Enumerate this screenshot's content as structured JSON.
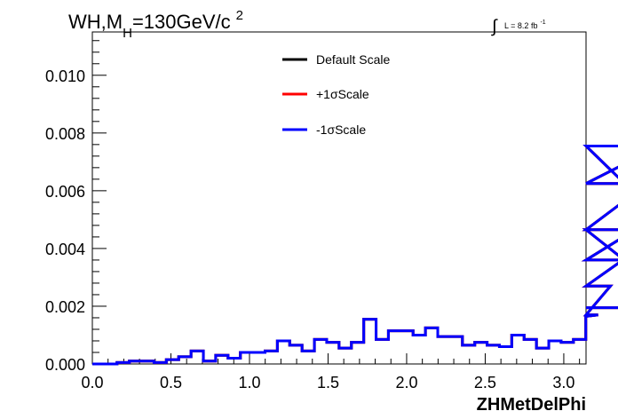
{
  "chart_data": {
    "type": "line",
    "title": {
      "prefix": "WH,M",
      "subscript": "H",
      "rest": "=130GeV/c",
      "superscript": "2"
    },
    "lumi": {
      "integral": "∫",
      "text": "L = 8.2 fb",
      "superscript": "-1"
    },
    "xlabel": "ZHMetDelPhi",
    "ylabel": "",
    "xlim": [
      0.0,
      3.1416
    ],
    "ylim": [
      0.0,
      0.0115
    ],
    "xticks": [
      0.0,
      0.5,
      1.0,
      1.5,
      2.0,
      2.5,
      3.0
    ],
    "xtick_labels": [
      "0.0",
      "0.5",
      "1.0",
      "1.5",
      "2.0",
      "2.5",
      "3.0"
    ],
    "yticks": [
      0.0,
      0.002,
      0.004,
      0.006,
      0.008,
      0.01
    ],
    "ytick_labels": [
      "0.000",
      "0.002",
      "0.004",
      "0.006",
      "0.008",
      "0.010"
    ],
    "bin_width": 0.0785,
    "legend_position": "top-center",
    "series": [
      {
        "name": "Default Scale",
        "color": "#000000",
        "values": [
          0.0,
          0.0,
          5e-05,
          0.0001,
          0.0001,
          5e-05,
          0.00015,
          0.00025,
          0.00045,
          0.0001,
          0.0003,
          0.0002,
          0.0004,
          0.0004,
          0.00045,
          0.0008,
          0.00065,
          0.00045,
          0.00085,
          0.00075,
          0.00055,
          0.00075,
          0.00155,
          0.00085,
          0.00115,
          0.00115,
          0.001,
          0.00125,
          0.00095,
          0.00095,
          0.00065,
          0.00075,
          0.00065,
          0.0006,
          0.001,
          0.00085,
          0.00055,
          0.0008,
          0.00075,
          0.00085,
          0.00165,
          0.0017,
          0.0027,
          0.0036,
          0.00465,
          0.00625,
          0.00755,
          0.00465,
          0.00195
        ]
      },
      {
        "name": "+1σScale",
        "color": "#ff0000",
        "values": [
          0.0,
          0.0,
          5e-05,
          0.0001,
          0.0001,
          5e-05,
          0.00015,
          0.00025,
          0.00045,
          0.0001,
          0.0003,
          0.0002,
          0.0004,
          0.0004,
          0.00045,
          0.0008,
          0.00065,
          0.00045,
          0.00085,
          0.00075,
          0.00055,
          0.00075,
          0.00155,
          0.00085,
          0.00115,
          0.00115,
          0.001,
          0.00125,
          0.00095,
          0.00095,
          0.00065,
          0.00075,
          0.00065,
          0.0006,
          0.001,
          0.00085,
          0.00055,
          0.0008,
          0.00075,
          0.00085,
          0.00165,
          0.0017,
          0.0027,
          0.0036,
          0.00465,
          0.00625,
          0.00755,
          0.00465,
          0.00195
        ]
      },
      {
        "name": "-1σScale",
        "color": "#0000ff",
        "values": [
          0.0,
          0.0,
          5e-05,
          0.0001,
          0.0001,
          5e-05,
          0.00015,
          0.00025,
          0.00045,
          0.0001,
          0.0003,
          0.0002,
          0.0004,
          0.0004,
          0.00045,
          0.0008,
          0.00065,
          0.00045,
          0.00085,
          0.00075,
          0.00055,
          0.00075,
          0.00155,
          0.00085,
          0.00115,
          0.00115,
          0.001,
          0.00125,
          0.00095,
          0.00095,
          0.00065,
          0.00075,
          0.00065,
          0.0006,
          0.001,
          0.00085,
          0.00055,
          0.0008,
          0.00075,
          0.00085,
          0.00165,
          0.0017,
          0.0027,
          0.0036,
          0.00465,
          0.00625,
          0.00755,
          0.00465,
          0.00195
        ]
      }
    ]
  }
}
